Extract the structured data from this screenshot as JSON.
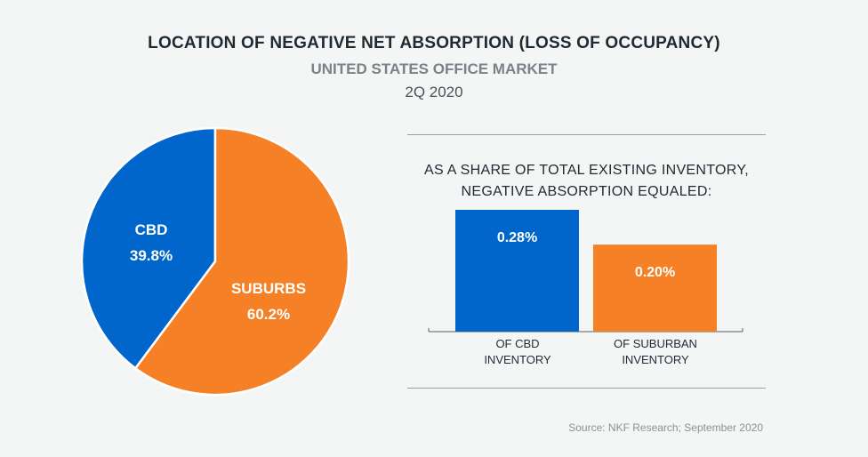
{
  "title": "LOCATION OF NEGATIVE NET ABSORPTION (LOSS OF OCCUPANCY)",
  "subtitle": "UNITED STATES OFFICE MARKET",
  "period": "2Q 2020",
  "bar_heading_line1": "AS A SHARE OF TOTAL EXISTING INVENTORY,",
  "bar_heading_line2": "NEGATIVE ABSORPTION EQUALED:",
  "source": "Source: NKF Research; September 2020",
  "colors": {
    "cbd": "#0066cc",
    "suburbs": "#f58025"
  },
  "chart_data": [
    {
      "type": "pie",
      "slices": [
        {
          "name": "CBD",
          "value": 39.8,
          "label": "39.8%"
        },
        {
          "name": "SUBURBS",
          "value": 60.2,
          "label": "60.2%"
        }
      ]
    },
    {
      "type": "bar",
      "categories": [
        "OF CBD INVENTORY",
        "OF SUBURBAN INVENTORY"
      ],
      "category_lines": [
        [
          "OF CBD",
          "INVENTORY"
        ],
        [
          "OF SUBURBAN",
          "INVENTORY"
        ]
      ],
      "values": [
        0.28,
        0.2
      ],
      "value_labels": [
        "0.28%",
        "0.20%"
      ]
    }
  ]
}
